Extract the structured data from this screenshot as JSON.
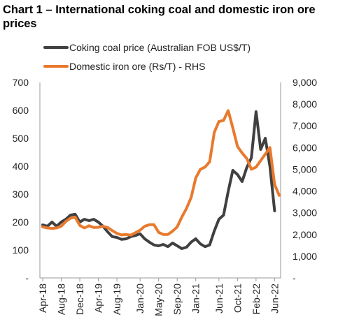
{
  "chart_data": {
    "type": "line",
    "title": "Chart 1 – International coking coal and domestic iron ore prices",
    "x": [
      "Apr-18",
      "May-18",
      "Jun-18",
      "Jul-18",
      "Aug-18",
      "Sep-18",
      "Oct-18",
      "Nov-18",
      "Dec-18",
      "Jan-19",
      "Feb-19",
      "Mar-19",
      "Apr-19",
      "May-19",
      "Jun-19",
      "Jul-19",
      "Aug-19",
      "Sep-19",
      "Oct-19",
      "Nov-19",
      "Dec-19",
      "Jan-20",
      "Feb-20",
      "Mar-20",
      "Apr-20",
      "May-20",
      "Jun-20",
      "Jul-20",
      "Aug-20",
      "Sep-20",
      "Oct-20",
      "Nov-20",
      "Dec-20",
      "Jan-21",
      "Feb-21",
      "Mar-21",
      "Apr-21",
      "May-21",
      "Jun-21",
      "Jul-21",
      "Aug-21",
      "Sep-21",
      "Oct-21",
      "Nov-21",
      "Dec-21",
      "Jan-22",
      "Feb-22",
      "Mar-22",
      "Apr-22",
      "May-22",
      "Jun-22",
      "Jul-22"
    ],
    "x_tick_labels": [
      "Apr-18",
      "Aug-18",
      "Dec-18",
      "Apr-19",
      "Aug-19",
      "Jan-20",
      "May-20",
      "Sep-20",
      "Jan-21",
      "Jun-21",
      "Oct-21",
      "Feb-22",
      "Jun-22"
    ],
    "y_left": {
      "ylim": [
        0,
        700
      ],
      "tick_labels": [
        "-",
        "100",
        "200",
        "300",
        "400",
        "500",
        "600",
        "700"
      ]
    },
    "y_right": {
      "ylim": [
        0,
        9000
      ],
      "tick_labels": [
        "-",
        "1,000",
        "2,000",
        "3,000",
        "4,000",
        "5,000",
        "6,000",
        "7,000",
        "8,000",
        "9,000"
      ]
    },
    "grid": false,
    "legend_position": "top",
    "series": [
      {
        "name": "Coking coal price (Australian FOB US$/T)",
        "axis": "left",
        "color": "#404040",
        "values": [
          190,
          185,
          200,
          185,
          200,
          210,
          225,
          228,
          200,
          210,
          205,
          210,
          200,
          185,
          165,
          148,
          145,
          138,
          140,
          148,
          152,
          158,
          140,
          128,
          118,
          115,
          120,
          112,
          125,
          115,
          105,
          110,
          128,
          140,
          122,
          112,
          118,
          168,
          210,
          225,
          310,
          385,
          370,
          345,
          395,
          430,
          595,
          460,
          500,
          400,
          240,
          null
        ]
      },
      {
        "name": "Domestic iron ore (Rs/T) - RHS",
        "axis": "right",
        "color": "#E87A2E",
        "values": [
          2350,
          2300,
          2280,
          2300,
          2380,
          2600,
          2750,
          2800,
          2420,
          2300,
          2400,
          2320,
          2330,
          2380,
          2320,
          2180,
          2050,
          1980,
          2000,
          1970,
          2080,
          2200,
          2380,
          2450,
          2450,
          2100,
          2000,
          2000,
          2150,
          2350,
          2800,
          3200,
          3700,
          4600,
          5000,
          5100,
          5350,
          6700,
          7200,
          7250,
          7700,
          6900,
          6050,
          5750,
          5500,
          5000,
          5100,
          5400,
          5700,
          6000,
          4300,
          3800
        ]
      }
    ]
  }
}
